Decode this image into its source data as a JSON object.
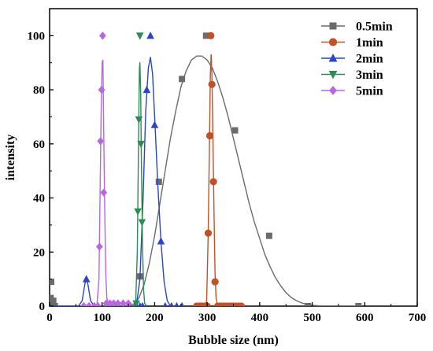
{
  "chart_data": {
    "type": "line",
    "title": "",
    "xlabel": "Bubble size (nm)",
    "ylabel": "intensity",
    "xlim": [
      0,
      700
    ],
    "ylim": [
      0,
      110
    ],
    "xticks": [
      0,
      100,
      200,
      300,
      400,
      500,
      600,
      700
    ],
    "yticks": [
      0,
      20,
      40,
      60,
      80,
      100
    ],
    "grid": false,
    "legend_position": "top-right",
    "series": [
      {
        "name": "0.5min",
        "color": "#6b6b6b",
        "marker": "square",
        "points": [
          [
            2,
            3
          ],
          [
            3,
            9
          ],
          [
            5,
            1
          ],
          [
            7,
            2
          ],
          [
            10,
            0
          ],
          [
            172,
            11
          ],
          [
            208,
            46
          ],
          [
            252,
            84
          ],
          [
            298,
            100
          ],
          [
            353,
            65
          ],
          [
            418,
            26
          ],
          [
            492,
            0
          ],
          [
            588,
            0
          ]
        ],
        "curve": [
          [
            150,
            0
          ],
          [
            160,
            0.8
          ],
          [
            170,
            3
          ],
          [
            180,
            8
          ],
          [
            190,
            16
          ],
          [
            200,
            26
          ],
          [
            210,
            38
          ],
          [
            220,
            50
          ],
          [
            230,
            62
          ],
          [
            240,
            72
          ],
          [
            250,
            81
          ],
          [
            260,
            87
          ],
          [
            270,
            91
          ],
          [
            280,
            92.5
          ],
          [
            290,
            92.5
          ],
          [
            300,
            91
          ],
          [
            310,
            88
          ],
          [
            320,
            83
          ],
          [
            330,
            77
          ],
          [
            340,
            70
          ],
          [
            350,
            62
          ],
          [
            360,
            54
          ],
          [
            370,
            46
          ],
          [
            380,
            38
          ],
          [
            390,
            31
          ],
          [
            400,
            25
          ],
          [
            410,
            19
          ],
          [
            420,
            14.5
          ],
          [
            430,
            10.5
          ],
          [
            440,
            7.5
          ],
          [
            450,
            5
          ],
          [
            460,
            3.2
          ],
          [
            470,
            2
          ],
          [
            480,
            1.2
          ],
          [
            490,
            0.6
          ],
          [
            500,
            0.3
          ],
          [
            520,
            0.05
          ],
          [
            560,
            0
          ],
          [
            590,
            0
          ]
        ]
      },
      {
        "name": "1min",
        "color": "#c0522a",
        "marker": "circle",
        "points": [
          [
            280,
            0
          ],
          [
            285,
            0
          ],
          [
            290,
            0
          ],
          [
            295,
            0
          ],
          [
            300,
            0
          ],
          [
            302,
            27
          ],
          [
            305,
            63
          ],
          [
            307,
            100
          ],
          [
            309,
            82
          ],
          [
            312,
            46
          ],
          [
            315,
            9
          ],
          [
            320,
            0
          ],
          [
            325,
            0
          ],
          [
            330,
            0
          ],
          [
            335,
            0
          ],
          [
            340,
            0
          ],
          [
            345,
            0
          ],
          [
            350,
            0
          ],
          [
            355,
            0
          ],
          [
            360,
            0
          ],
          [
            365,
            0
          ]
        ],
        "curve": [
          [
            282,
            0
          ],
          [
            296,
            0
          ],
          [
            299,
            2
          ],
          [
            302,
            27
          ],
          [
            304,
            55
          ],
          [
            306,
            85
          ],
          [
            307.5,
            93
          ],
          [
            309,
            86
          ],
          [
            311,
            62
          ],
          [
            313,
            35
          ],
          [
            315,
            12
          ],
          [
            317,
            3
          ],
          [
            320,
            0
          ],
          [
            368,
            0
          ]
        ]
      },
      {
        "name": "2min",
        "color": "#2a45c8",
        "marker": "triangle-up",
        "points": [
          [
            70,
            10
          ],
          [
            165,
            0
          ],
          [
            172,
            0
          ],
          [
            177,
            0
          ],
          [
            185,
            80
          ],
          [
            192,
            100
          ],
          [
            200,
            67
          ],
          [
            212,
            24
          ],
          [
            220,
            0
          ],
          [
            232,
            0
          ],
          [
            242,
            0
          ],
          [
            252,
            0
          ]
        ],
        "curve": [
          [
            0,
            0
          ],
          [
            55,
            0
          ],
          [
            62,
            2
          ],
          [
            67,
            8
          ],
          [
            70,
            10.5
          ],
          [
            73,
            8
          ],
          [
            78,
            2
          ],
          [
            85,
            0
          ],
          [
            150,
            0
          ],
          [
            165,
            0
          ],
          [
            172,
            10
          ],
          [
            178,
            40
          ],
          [
            183,
            72
          ],
          [
            188,
            88
          ],
          [
            192,
            92
          ],
          [
            196,
            86
          ],
          [
            201,
            66
          ],
          [
            206,
            45
          ],
          [
            212,
            24
          ],
          [
            218,
            9
          ],
          [
            224,
            2
          ],
          [
            230,
            0
          ],
          [
            255,
            0
          ]
        ]
      },
      {
        "name": "3min",
        "color": "#2e8b57",
        "marker": "triangle-down",
        "points": [
          [
            165,
            1
          ],
          [
            168,
            35
          ],
          [
            170,
            69
          ],
          [
            172,
            100
          ],
          [
            174,
            60
          ],
          [
            176,
            31
          ]
        ],
        "curve": [
          [
            160,
            0
          ],
          [
            164,
            2
          ],
          [
            167,
            20
          ],
          [
            169,
            55
          ],
          [
            171,
            88
          ],
          [
            172,
            90
          ],
          [
            173.5,
            78
          ],
          [
            175,
            50
          ],
          [
            177,
            22
          ],
          [
            179,
            6
          ],
          [
            181,
            1
          ],
          [
            185,
            0
          ]
        ]
      },
      {
        "name": "5min",
        "color": "#b967e0",
        "marker": "diamond",
        "points": [
          [
            65,
            0
          ],
          [
            75,
            0
          ],
          [
            85,
            0
          ],
          [
            92,
            0
          ],
          [
            95,
            22
          ],
          [
            97,
            61
          ],
          [
            99,
            80
          ],
          [
            101,
            100
          ],
          [
            103,
            42
          ],
          [
            108,
            1
          ],
          [
            115,
            1
          ],
          [
            122,
            1
          ],
          [
            130,
            1
          ],
          [
            140,
            1
          ],
          [
            150,
            1
          ]
        ],
        "curve": [
          [
            60,
            0
          ],
          [
            90,
            0
          ],
          [
            94,
            10
          ],
          [
            96,
            40
          ],
          [
            98,
            70
          ],
          [
            100,
            90
          ],
          [
            101.5,
            91
          ],
          [
            103,
            65
          ],
          [
            105,
            35
          ],
          [
            107,
            12
          ],
          [
            109,
            3
          ],
          [
            112,
            1
          ],
          [
            150,
            1
          ]
        ]
      }
    ]
  }
}
